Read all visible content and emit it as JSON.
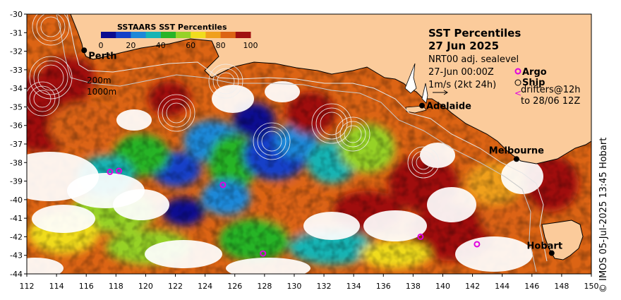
{
  "colors": {
    "land": "#FBCB9B",
    "cloud": "#FFFFFF",
    "scale": [
      "#0B0B90",
      "#1440C8",
      "#1E88D8",
      "#19B4B4",
      "#28B428",
      "#96D228",
      "#F0DC1E",
      "#F0A01E",
      "#DC6414",
      "#A01010"
    ],
    "contour": "#E6E6E6",
    "argo": "#E000E0"
  },
  "colorbar": {
    "title": "SSTAARS SST Percentiles",
    "ticks": [
      "0",
      "20",
      "40",
      "60",
      "80",
      "100"
    ]
  },
  "header": {
    "title": "SST Percentiles",
    "date": "27 Jun 2025",
    "lines": [
      "NRT00 adj. sealevel",
      "27-Jun 00:00Z",
      "1m/s (2kt 24h)"
    ]
  },
  "legend": {
    "argo": "Argo",
    "ship": "Ship",
    "drifters": "drifters@12h",
    "drifters_to": "to 28/06 12Z"
  },
  "isobaths": [
    "200m",
    "1000m"
  ],
  "cities": [
    {
      "name": "Perth",
      "lon": 115.86,
      "lat": -31.95,
      "label": "right"
    },
    {
      "name": "Adelaide",
      "lon": 138.6,
      "lat": -34.93,
      "label": "right"
    },
    {
      "name": "Melbourne",
      "lon": 144.96,
      "lat": -37.81,
      "label": "above"
    },
    {
      "name": "Hobart",
      "lon": 147.33,
      "lat": -42.88,
      "label": "left"
    }
  ],
  "argo_floats": [
    {
      "lon": 117.6,
      "lat": -38.5
    },
    {
      "lon": 118.2,
      "lat": -38.45
    },
    {
      "lon": 125.2,
      "lat": -39.2
    },
    {
      "lon": 127.9,
      "lat": -42.9
    },
    {
      "lon": 138.5,
      "lat": -42.0
    },
    {
      "lon": 142.3,
      "lat": -42.4
    }
  ],
  "map_range": {
    "lon": [
      112,
      150
    ],
    "lat": [
      -44,
      -30
    ]
  },
  "x_ticks": [
    "112",
    "114",
    "116",
    "118",
    "120",
    "122",
    "124",
    "126",
    "128",
    "130",
    "132",
    "134",
    "136",
    "138",
    "140",
    "142",
    "144",
    "146",
    "148",
    "150"
  ],
  "y_ticks": [
    "-30",
    "-31",
    "-32",
    "-33",
    "-34",
    "-35",
    "-36",
    "-37",
    "-38",
    "-39",
    "-40",
    "-41",
    "-42",
    "-43",
    "-44"
  ],
  "credit": "© IMOS 05-Jul-2025 13:45 Hobart"
}
